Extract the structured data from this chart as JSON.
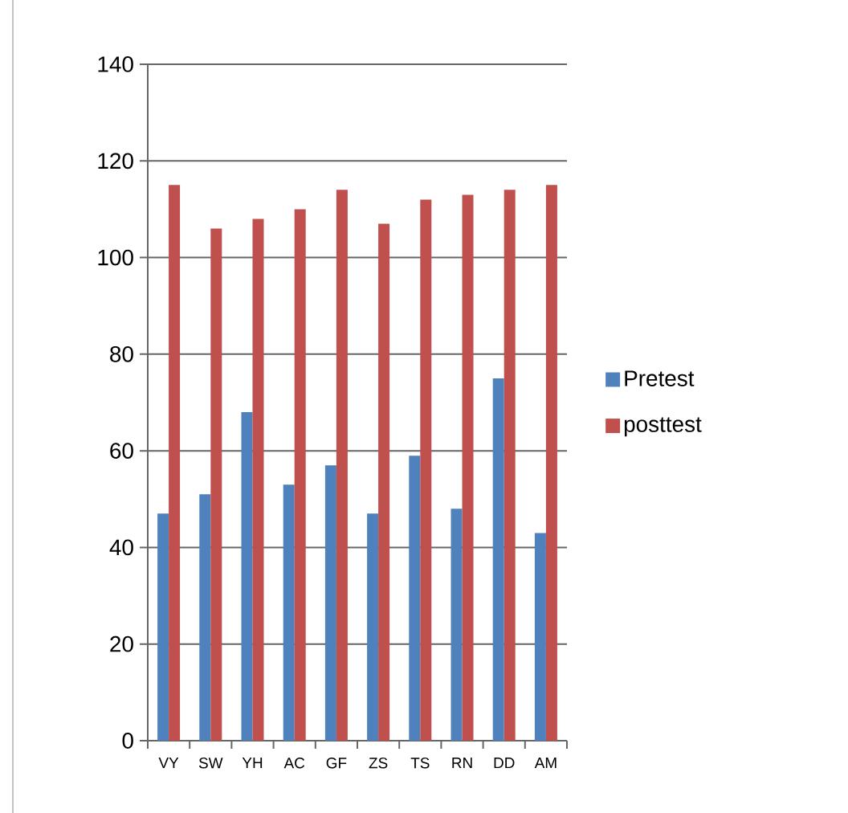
{
  "chart_data": {
    "type": "bar",
    "categories": [
      "VY",
      "SW",
      "YH",
      "AC",
      "GF",
      "ZS",
      "TS",
      "RN",
      "DD",
      "AM"
    ],
    "series": [
      {
        "name": "Pretest",
        "color": "#4f81bd",
        "values": [
          47,
          51,
          68,
          53,
          57,
          47,
          59,
          48,
          75,
          43
        ]
      },
      {
        "name": "posttest",
        "color": "#c0504d",
        "values": [
          115,
          106,
          108,
          110,
          114,
          107,
          112,
          113,
          114,
          115
        ]
      }
    ],
    "ylim": [
      0,
      140
    ],
    "yticks": [
      0,
      20,
      40,
      60,
      80,
      100,
      120,
      140
    ],
    "grid": "y",
    "legend": "right"
  }
}
